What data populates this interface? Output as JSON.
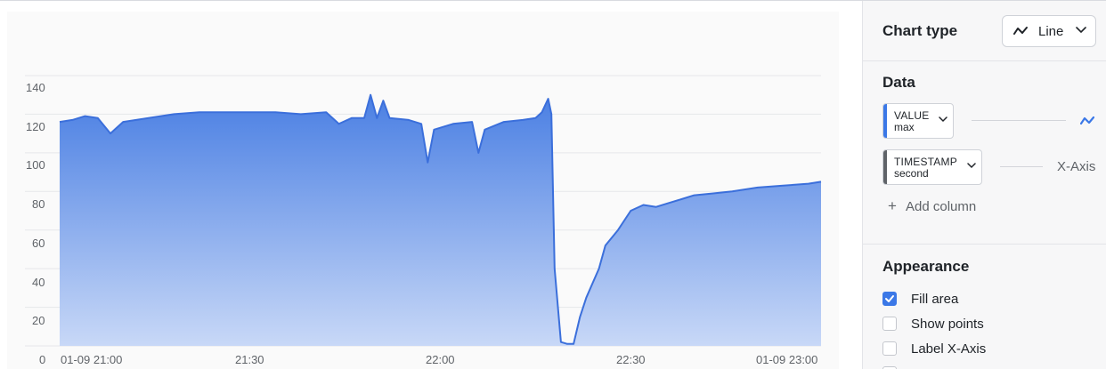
{
  "chart": {
    "y_ticks": [
      "140",
      "120",
      "100",
      "80",
      "60",
      "40",
      "20",
      "0"
    ],
    "x_ticks": [
      "01-09 21:00",
      "21:30",
      "22:00",
      "22:30",
      "01-09 23:00"
    ]
  },
  "chart_data": {
    "type": "area",
    "x_unit": "time (01-09)",
    "ylim": [
      0,
      140
    ],
    "xlim": [
      "21:00",
      "23:00"
    ],
    "grid": true,
    "series": [
      {
        "color": "#3b6fdb",
        "points": [
          [
            "21:00",
            116
          ],
          [
            "21:02",
            117
          ],
          [
            "21:04",
            119
          ],
          [
            "21:06",
            118
          ],
          [
            "21:08",
            110
          ],
          [
            "21:10",
            116
          ],
          [
            "21:14",
            118
          ],
          [
            "21:18",
            120
          ],
          [
            "21:22",
            121
          ],
          [
            "21:26",
            121
          ],
          [
            "21:30",
            121
          ],
          [
            "21:34",
            121
          ],
          [
            "21:38",
            120
          ],
          [
            "21:42",
            121
          ],
          [
            "21:44",
            115
          ],
          [
            "21:46",
            118
          ],
          [
            "21:48",
            118
          ],
          [
            "21:49",
            130
          ],
          [
            "21:50",
            118
          ],
          [
            "21:51",
            127
          ],
          [
            "21:52",
            118
          ],
          [
            "21:55",
            117
          ],
          [
            "21:57",
            115
          ],
          [
            "21:58",
            95
          ],
          [
            "21:59",
            112
          ],
          [
            "22:02",
            115
          ],
          [
            "22:05",
            116
          ],
          [
            "22:06",
            100
          ],
          [
            "22:07",
            112
          ],
          [
            "22:10",
            116
          ],
          [
            "22:13",
            117
          ],
          [
            "22:15",
            118
          ],
          [
            "22:16",
            121
          ],
          [
            "22:17",
            128
          ],
          [
            "22:17.5",
            120
          ],
          [
            "22:18",
            40
          ],
          [
            "22:19",
            2
          ],
          [
            "22:20",
            1
          ],
          [
            "22:21",
            1
          ],
          [
            "22:22",
            15
          ],
          [
            "22:23",
            25
          ],
          [
            "22:25",
            40
          ],
          [
            "22:26",
            52
          ],
          [
            "22:28",
            60
          ],
          [
            "22:30",
            70
          ],
          [
            "22:32",
            73
          ],
          [
            "22:34",
            72
          ],
          [
            "22:36",
            74
          ],
          [
            "22:38",
            76
          ],
          [
            "22:40",
            78
          ],
          [
            "22:43",
            79
          ],
          [
            "22:46",
            80
          ],
          [
            "22:50",
            82
          ],
          [
            "22:54",
            83
          ],
          [
            "22:58",
            84
          ],
          [
            "23:00",
            85
          ]
        ]
      }
    ]
  },
  "sidebar": {
    "chart_type": {
      "title": "Chart type",
      "selected": "Line",
      "icon": "line-chart-icon"
    },
    "data": {
      "title": "Data",
      "value_column": {
        "name": "VALUE",
        "agg": "max",
        "accent": "#3b78e7"
      },
      "time_column": {
        "name": "TIMESTAMP",
        "agg": "second",
        "accent": "#5f6368"
      },
      "x_axis_label": "X-Axis",
      "add_column": "Add column"
    },
    "appearance": {
      "title": "Appearance",
      "options": [
        {
          "label": "Fill area",
          "checked": true
        },
        {
          "label": "Show points",
          "checked": false
        },
        {
          "label": "Label X-Axis",
          "checked": false
        },
        {
          "label": "",
          "checked": false
        }
      ]
    }
  }
}
